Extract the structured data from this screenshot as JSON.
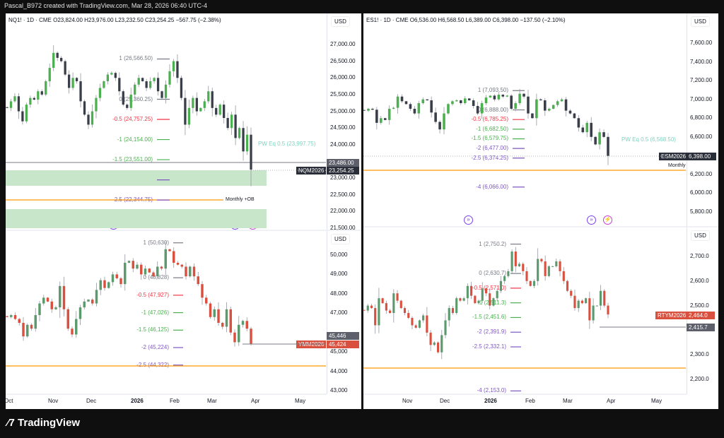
{
  "header": {
    "title": "Pascal_B972 created with TradingView.com, Mar 28, 2026 06:40 UTC-4"
  },
  "brand": {
    "name": "TradingView",
    "logo_icon": "tv-logo-icon"
  },
  "colors": {
    "up_green": "#4caf50",
    "down_dark": "#3a3e4a",
    "down_red": "#d9503f",
    "fib_red": "#f23645",
    "fib_green": "#4caf50",
    "fib_purple": "#7e57c2",
    "fib_grey": "#787b86",
    "orange_line": "#ff9800",
    "zone": "#c8e6c9",
    "pw_eq": "#7fd3c0"
  },
  "chart_data": [
    {
      "id": "nq",
      "type": "candlestick",
      "legend": "NQ1! · 1D · CME  O23,824.00  H23,976.00  L23,232.50  C23,254.25  −567.75 (−2.38%)",
      "currency": "USD",
      "y_ticks": [
        "27,000.00",
        "26,500.00",
        "26,000.00",
        "25,500.00",
        "25,000.00",
        "24,500.00",
        "24,000.00",
        "23,000.00",
        "22,500.00",
        "22,000.00",
        "21,500.00"
      ],
      "ylim": [
        21500,
        27500
      ],
      "closes": [
        25100,
        25300,
        25450,
        25000,
        24700,
        25200,
        25400,
        25350,
        25600,
        25500,
        25900,
        26300,
        26750,
        26600,
        26500,
        26100,
        25700,
        26000,
        25900,
        25300,
        24900,
        24600,
        25000,
        25400,
        25700,
        25900,
        26100,
        26150,
        26000,
        25600,
        25200,
        25100,
        25500,
        25800,
        26000,
        25900,
        25700,
        25900,
        26000,
        25600,
        25400,
        25800,
        26200,
        26500,
        26000,
        25400,
        24600,
        25100,
        25400,
        25000,
        25100,
        25300,
        25600,
        25100,
        24900,
        25200,
        24800,
        24500,
        24900,
        24200,
        24500,
        23800,
        24300,
        23254
      ],
      "fib": [
        {
          "label": "1 (26,566.50)",
          "value": 26566.5,
          "color": "grey"
        },
        {
          "label": "0 (25,360.25)",
          "value": 25360.25,
          "color": "grey"
        },
        {
          "label": "-0.5 (24,757.25)",
          "value": 24757.25,
          "color": "red"
        },
        {
          "label": "-1 (24,154.00)",
          "value": 24154,
          "color": "green"
        },
        {
          "label": "-1.5 (23,551.00)",
          "value": 23551,
          "color": "green"
        },
        {
          "label": "-2 (22,947.75)",
          "value": 22947.75,
          "color": "purple"
        },
        {
          "label": "-2.5 (22,344.75)",
          "value": 22344.75,
          "color": "purple"
        }
      ],
      "pw_eq": "PW Eq  0.5 (23,997.75)",
      "zone_label": "Monthly +OB",
      "price_tags": [
        {
          "label": "",
          "value": "23,486.00"
        },
        {
          "label": "NQM2026",
          "value": "23,254.25"
        }
      ]
    },
    {
      "id": "es",
      "type": "candlestick",
      "legend": "ES1! · 1D · CME  O6,536.00  H6,568.50  L6,389.00  C6,398.00  −137.50 (−2.10%)",
      "currency": "USD",
      "y_ticks": [
        "7,600.00",
        "7,400.00",
        "7,200.00",
        "7,000.00",
        "6,800.00",
        "6,600.00",
        "6,200.00",
        "6,000.00",
        "5,800.00"
      ],
      "ylim": [
        5700,
        7700
      ],
      "closes": [
        6880,
        6900,
        6890,
        6750,
        6800,
        6780,
        6900,
        6910,
        7030,
        6980,
        6950,
        6900,
        6850,
        6960,
        7000,
        6990,
        6860,
        6760,
        6680,
        6850,
        6950,
        6980,
        6990,
        6960,
        7010,
        6990,
        6930,
        6850,
        6960,
        7020,
        7040,
        7000,
        7050,
        7030,
        7040,
        6900,
        6960,
        7060,
        7030,
        6850,
        6800,
        7000,
        6990,
        6880,
        6900,
        6940,
        6980,
        7000,
        6880,
        6850,
        6800,
        6700,
        6650,
        6750,
        6600,
        6520,
        6650,
        6600,
        6398
      ],
      "fib": [
        {
          "label": "1 (7,093.50)",
          "value": 7093.5,
          "color": "grey"
        },
        {
          "label": "0 (6,888.00)",
          "value": 6888,
          "color": "grey"
        },
        {
          "label": "-0.5 (6,785.25)",
          "value": 6785.25,
          "color": "red"
        },
        {
          "label": "-1 (6,682.50)",
          "value": 6682.5,
          "color": "green"
        },
        {
          "label": "-1.5 (6,579.75)",
          "value": 6579.75,
          "color": "green"
        },
        {
          "label": "-2 (6,477.00)",
          "value": 6477,
          "color": "purple"
        },
        {
          "label": "-2.5 (6,374.25)",
          "value": 6374.25,
          "color": "purple"
        },
        {
          "label": "-4 (6,066.00)",
          "value": 6066,
          "color": "purple"
        }
      ],
      "pw_eq": "PW Eq  0.5 (6,568.50)",
      "zone_label": "Monthly",
      "price_tags": [
        {
          "label": "ESM2026",
          "value": "6,398.00"
        }
      ]
    },
    {
      "id": "ym",
      "type": "candlestick",
      "currency": "USD",
      "y_ticks": [
        "50,000",
        "49,000",
        "48,000",
        "47,000",
        "45,000",
        "44,000",
        "43,000"
      ],
      "ylim": [
        42500,
        51000
      ],
      "closes": [
        46800,
        46900,
        46700,
        46500,
        45800,
        46400,
        46200,
        46900,
        47500,
        47800,
        47600,
        47200,
        47300,
        48400,
        47200,
        46200,
        45900,
        46700,
        47300,
        47600,
        47700,
        47500,
        48200,
        48700,
        48300,
        48600,
        49000,
        48800,
        48500,
        49600,
        49700,
        49300,
        49500,
        49000,
        49300,
        49100,
        48900,
        49400,
        49300,
        50300,
        50200,
        49600,
        49500,
        49400,
        48900,
        49400,
        48900,
        48500,
        47800,
        47500,
        46800,
        47200,
        46500,
        46300,
        47200,
        46000,
        45500,
        46400,
        46600,
        46200,
        45424
      ],
      "fib": [
        {
          "label": "1 (50,630)",
          "value": 50630,
          "color": "grey"
        },
        {
          "label": "0 (48,828)",
          "value": 48828,
          "color": "grey"
        },
        {
          "label": "-0.5 (47,927)",
          "value": 47927,
          "color": "red"
        },
        {
          "label": "-1 (47,026)",
          "value": 47026,
          "color": "green"
        },
        {
          "label": "-1.5 (46,125)",
          "value": 46125,
          "color": "green"
        },
        {
          "label": "-2 (45,224)",
          "value": 45224,
          "color": "purple"
        },
        {
          "label": "-2.5 (44,322)",
          "value": 44322,
          "color": "purple"
        }
      ],
      "x_ticks": [
        "Oct",
        "Nov",
        "Dec",
        "2026",
        "Feb",
        "Mar",
        "Apr",
        "May"
      ],
      "price_tags": [
        {
          "label": "",
          "value": "45,446"
        },
        {
          "label": "YMM2026",
          "value": "45,424"
        }
      ]
    },
    {
      "id": "rty",
      "type": "candlestick",
      "currency": "USD",
      "y_ticks": [
        "2,700.0",
        "2,600.0",
        "2,500.0",
        "2,300.0",
        "2,200.0"
      ],
      "ylim": [
        2150,
        2770
      ],
      "closes": [
        2480,
        2500,
        2490,
        2420,
        2530,
        2510,
        2480,
        2470,
        2550,
        2520,
        2490,
        2470,
        2450,
        2420,
        2410,
        2440,
        2460,
        2390,
        2340,
        2350,
        2310,
        2380,
        2440,
        2490,
        2470,
        2530,
        2520,
        2530,
        2580,
        2540,
        2510,
        2520,
        2570,
        2550,
        2500,
        2530,
        2560,
        2600,
        2620,
        2640,
        2720,
        2660,
        2670,
        2640,
        2600,
        2580,
        2600,
        2690,
        2680,
        2620,
        2660,
        2660,
        2680,
        2640,
        2600,
        2560,
        2540,
        2490,
        2520,
        2510,
        2530,
        2440,
        2500,
        2500,
        2560,
        2500,
        2464
      ],
      "fib": [
        {
          "label": "1 (2,750.2)",
          "value": 2750.2,
          "color": "grey"
        },
        {
          "label": "0 (2,630.7)",
          "value": 2630.7,
          "color": "grey"
        },
        {
          "label": "-0.5 (2,571.0)",
          "value": 2571,
          "color": "red"
        },
        {
          "label": "-1 (2,511.3)",
          "value": 2511.3,
          "color": "green"
        },
        {
          "label": "-1.5 (2,451.6)",
          "value": 2451.6,
          "color": "green"
        },
        {
          "label": "-2 (2,391.9)",
          "value": 2391.9,
          "color": "purple"
        },
        {
          "label": "-2.5 (2,332.1)",
          "value": 2332.1,
          "color": "purple"
        },
        {
          "label": "-4 (2,153.0)",
          "value": 2153,
          "color": "purple"
        }
      ],
      "x_ticks": [
        "Nov",
        "Dec",
        "2026",
        "Feb",
        "Mar",
        "Apr",
        "May"
      ],
      "price_tags": [
        {
          "label": "RTYM2026",
          "value": "2,464.0"
        },
        {
          "label": "",
          "value": "2,415.7"
        }
      ]
    }
  ]
}
